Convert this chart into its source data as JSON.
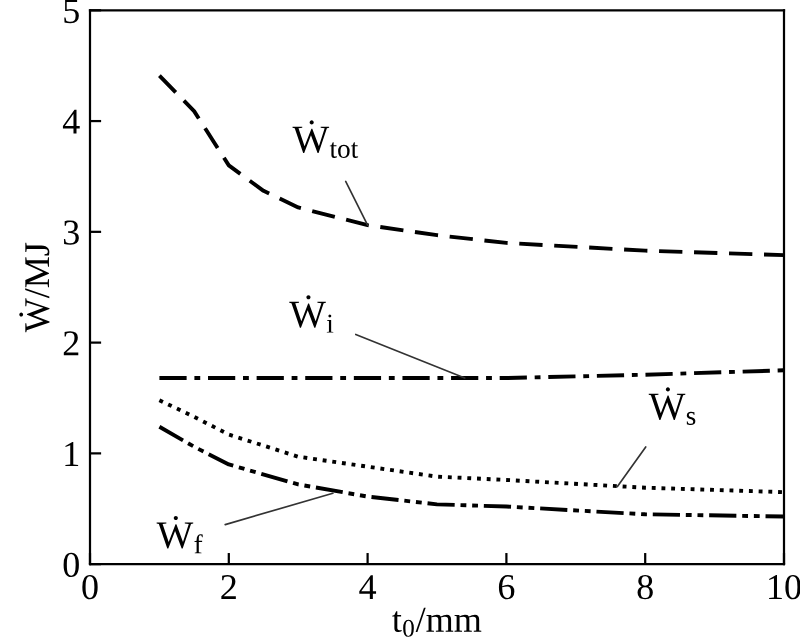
{
  "chart_data": {
    "type": "line",
    "xlabel": "t$_{0}$/mm",
    "ylabel": "Ẇ/MJ",
    "xlim": [
      0,
      10
    ],
    "ylim": [
      0,
      5
    ],
    "xticks": [
      0,
      2,
      4,
      6,
      8,
      10
    ],
    "yticks": [
      0,
      1,
      2,
      3,
      4,
      5
    ],
    "grid": false,
    "legend": false,
    "marker": "none",
    "series": [
      {
        "color": "#000000",
        "line_style": "dashed",
        "x": [
          1,
          1.5,
          2,
          2.5,
          3,
          4,
          5,
          6,
          8,
          10
        ],
        "values": [
          4.41,
          4.09,
          3.6,
          3.37,
          3.22,
          3.06,
          2.97,
          2.9,
          2.83,
          2.79
        ]
      },
      {
        "color": "#000000",
        "line_style": "dashdot",
        "x": [
          1,
          2,
          4,
          6,
          8,
          10
        ],
        "values": [
          1.68,
          1.68,
          1.68,
          1.68,
          1.71,
          1.75
        ]
      },
      {
        "color": "#000000",
        "line_style": "dotted",
        "x": [
          1,
          1.5,
          2,
          3,
          4,
          5,
          6,
          8,
          10
        ],
        "values": [
          1.48,
          1.33,
          1.17,
          0.97,
          0.88,
          0.79,
          0.76,
          0.69,
          0.65
        ]
      },
      {
        "color": "#000000",
        "line_style": "dashdotdot",
        "x": [
          1,
          1.5,
          2,
          3,
          4,
          5,
          6,
          8,
          10
        ],
        "values": [
          1.24,
          1.06,
          0.9,
          0.72,
          0.61,
          0.54,
          0.52,
          0.45,
          0.43
        ]
      }
    ],
    "annotations": [
      {
        "text": "Ẇ$_{tot}$",
        "x": 4,
        "y": 3.06
      },
      {
        "text": "Ẇ$_{i}$",
        "x": 5.4,
        "y": 1.68
      },
      {
        "text": "Ẇ$_{s}$",
        "x": 7.6,
        "y": 0.7
      },
      {
        "text": "Ẇ$_{f}$",
        "x": 3.5,
        "y": 0.64
      }
    ]
  }
}
